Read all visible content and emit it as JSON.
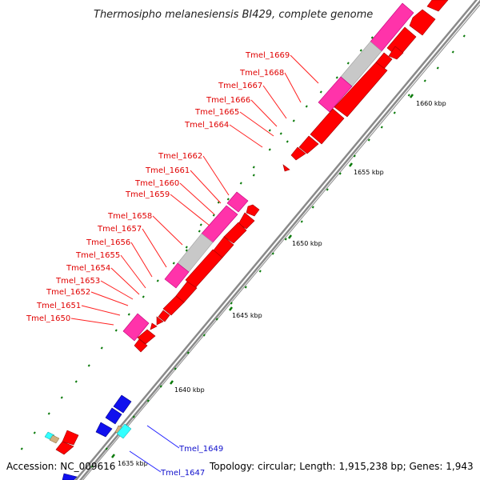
{
  "title": "Thermosipho melanesiensis BI429, complete genome",
  "footer": {
    "accession": "Accession: NC_009616",
    "summary": "Topology: circular; Length: 1,915,238 bp; Genes: 1,943"
  },
  "kbp_ticks": [
    "1635 kbp",
    "1640 kbp",
    "1645 kbp",
    "1650 kbp",
    "1655 kbp",
    "1660 kbp"
  ],
  "gene_labels_red": [
    "Tmel_1669",
    "Tmel_1668",
    "Tmel_1667",
    "Tmel_1666",
    "Tmel_1665",
    "Tmel_1664",
    "Tmel_1662",
    "Tmel_1661",
    "Tmel_1660",
    "Tmel_1659",
    "Tmel_1658",
    "Tmel_1657",
    "Tmel_1656",
    "Tmel_1655",
    "Tmel_1654",
    "Tmel_1653",
    "Tmel_1652",
    "Tmel_1651",
    "Tmel_1650"
  ],
  "gene_labels_blue": [
    "Tmel_1649",
    "Tmel_1647"
  ],
  "colors": {
    "forward_gene": "#ff0000",
    "reverse_gene": "#0000dd",
    "rna": "#ff33aa",
    "other": "#c0c0c0",
    "tick": "#008000",
    "backbone": "#808080"
  }
}
